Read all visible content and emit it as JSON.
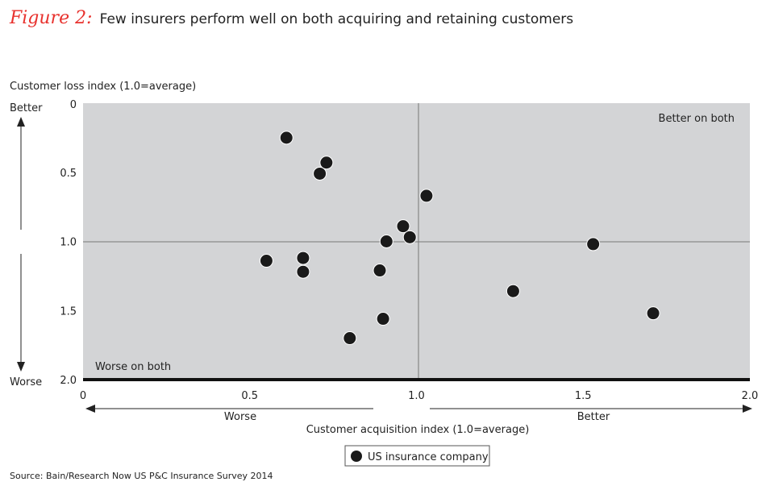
{
  "figure_label": "Figure 2:",
  "title": "Few insurers perform well on both acquiring and retaining customers",
  "source": "Source: Bain/Research Now US P&C Insurance Survey 2014",
  "colors": {
    "figure_label": "#e8322e",
    "plot_bg": "#d3d4d6",
    "point": "#1a1a1a"
  },
  "chart_data": {
    "type": "scatter",
    "xlabel": "Customer acquisition index (1.0=average)",
    "ylabel": "Customer loss index (1.0=average)",
    "xlim": [
      0,
      2.0
    ],
    "ylim": [
      0,
      2.0
    ],
    "y_inverted": true,
    "grid": false,
    "reference_lines": {
      "x": 1.0,
      "y": 1.0
    },
    "x_ticks": [
      "0",
      "0.5",
      "1.0",
      "1.5",
      "2.0"
    ],
    "y_ticks": [
      "0",
      "0.5",
      "1.0",
      "1.5",
      "2.0"
    ],
    "x_direction": {
      "left": "Worse",
      "right": "Better"
    },
    "y_direction": {
      "top": "Better",
      "bottom": "Worse"
    },
    "annotations": {
      "top_right": "Better on both",
      "bottom_left": "Worse on both"
    },
    "legend": {
      "position": "bottom",
      "entries": [
        "US insurance company"
      ]
    },
    "series": [
      {
        "name": "US insurance company",
        "points": [
          [
            0.61,
            0.25
          ],
          [
            0.73,
            0.43
          ],
          [
            0.71,
            0.51
          ],
          [
            1.03,
            0.67
          ],
          [
            0.96,
            0.89
          ],
          [
            0.98,
            0.97
          ],
          [
            0.91,
            1.0
          ],
          [
            1.53,
            1.02
          ],
          [
            0.55,
            1.14
          ],
          [
            0.66,
            1.12
          ],
          [
            0.66,
            1.22
          ],
          [
            0.89,
            1.21
          ],
          [
            1.29,
            1.36
          ],
          [
            1.71,
            1.52
          ],
          [
            0.9,
            1.56
          ],
          [
            0.8,
            1.7
          ]
        ]
      }
    ]
  }
}
